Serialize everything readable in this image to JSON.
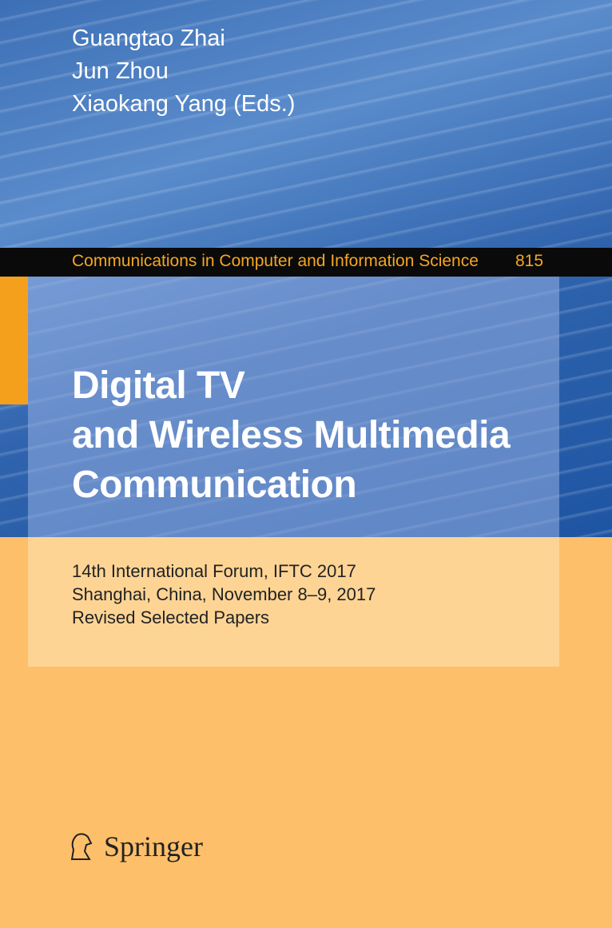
{
  "authors": [
    "Guangtao Zhai",
    "Jun Zhou",
    "Xiaokang Yang (Eds.)"
  ],
  "series": {
    "name": "Communications in Computer and Information Science",
    "number": "815"
  },
  "title": [
    "Digital TV",
    "and Wireless Multimedia",
    "Communication"
  ],
  "subtitle": [
    "14th International Forum, IFTC 2017",
    "Shanghai, China, November 8–9, 2017",
    "Revised Selected Papers"
  ],
  "publisher": "Springer",
  "colors": {
    "blue": "#2f63ad",
    "orange": "#fdbf6a",
    "accent": "#f5a623"
  }
}
